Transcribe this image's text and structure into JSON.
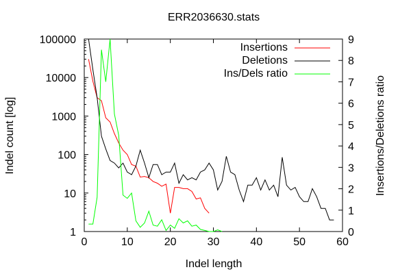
{
  "chart_data": {
    "type": "line",
    "title": "ERR2036630.stats",
    "xlabel": "Indel length",
    "ylabel": "Indel count [log]",
    "y2label": "Insertions/Deletions ratio",
    "xlim": [
      0,
      60
    ],
    "ylim": [
      1,
      100000
    ],
    "y2lim": [
      0,
      9
    ],
    "yscale": "log",
    "legend": "top-right",
    "grid": false,
    "xticks": [
      "0",
      "10",
      "20",
      "30",
      "40",
      "50",
      "60"
    ],
    "yticks": [
      "1",
      "10",
      "100",
      "1000",
      "10000",
      "100000"
    ],
    "y2ticks": [
      "0",
      "1",
      "2",
      "3",
      "4",
      "5",
      "6",
      "7",
      "8",
      "9"
    ],
    "series": [
      {
        "name": "Insertions",
        "axis": "left",
        "color": "#ff0000",
        "x": [
          1,
          2,
          3,
          4,
          5,
          6,
          7,
          8,
          9,
          10,
          11,
          12,
          13,
          14,
          15,
          16,
          17,
          18,
          19,
          20,
          21,
          22,
          23,
          24,
          25,
          26,
          27,
          28,
          29
        ],
        "y": [
          30000,
          8000,
          3000,
          2500,
          900,
          700,
          350,
          200,
          130,
          100,
          55,
          50,
          26,
          27,
          25,
          20,
          18,
          15,
          17,
          3,
          14,
          14,
          13,
          13,
          11,
          7,
          7.5,
          4,
          3
        ]
      },
      {
        "name": "Deletions",
        "axis": "left",
        "color": "#000000",
        "x": [
          1,
          2,
          3,
          4,
          5,
          6,
          7,
          8,
          9,
          10,
          11,
          12,
          13,
          14,
          15,
          16,
          17,
          18,
          19,
          20,
          21,
          22,
          23,
          24,
          25,
          26,
          27,
          28,
          29,
          30,
          31,
          32,
          33,
          34,
          35,
          36,
          37,
          38,
          39,
          40,
          41,
          42,
          43,
          44,
          45,
          46,
          47,
          48,
          49,
          50,
          51,
          52,
          53,
          54,
          55,
          56,
          57,
          58
        ],
        "y": [
          100000,
          16000,
          3000,
          300,
          140,
          70,
          60,
          45,
          60,
          35,
          30,
          50,
          130,
          60,
          25,
          55,
          55,
          30,
          35,
          35,
          60,
          18,
          30,
          22,
          25,
          22,
          35,
          40,
          60,
          40,
          12,
          20,
          90,
          35,
          30,
          12,
          6,
          16,
          16,
          25,
          12,
          22,
          12,
          16,
          8,
          85,
          16,
          12,
          14,
          8,
          6,
          6,
          13,
          8,
          4,
          4,
          2,
          2
        ]
      },
      {
        "name": "Ins/Dels ratio",
        "axis": "right",
        "color": "#00ff00",
        "x": [
          1,
          2,
          3,
          4,
          5,
          6,
          7,
          8,
          9,
          10,
          11,
          12,
          13,
          14,
          15,
          16,
          17,
          18,
          19,
          20,
          21,
          22,
          23,
          24,
          25,
          26,
          27,
          28,
          29,
          30,
          31,
          32
        ],
        "y": [
          0.35,
          0.35,
          1.6,
          8.5,
          7.0,
          9.0,
          5.5,
          4.5,
          1.7,
          1.55,
          1.8,
          0.5,
          0.2,
          0.4,
          0.95,
          0.3,
          0.25,
          0.55,
          0.05,
          0.3,
          0.15,
          0.6,
          0.4,
          0.5,
          0.25,
          0.3,
          0.1,
          0.05,
          0.0,
          0.0,
          0.08,
          0.0
        ]
      }
    ]
  }
}
